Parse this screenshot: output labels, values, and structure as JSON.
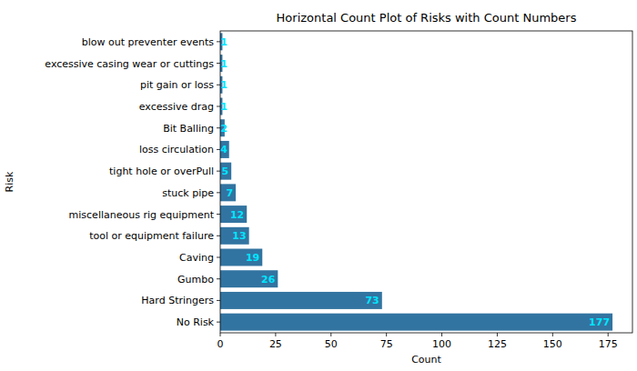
{
  "chart_data": {
    "type": "bar",
    "title": "Horizontal Count Plot of Risks with Count Numbers",
    "x_label": "Count",
    "y_label": "Risk",
    "categories": [
      "blow out preventer events",
      "excessive casing wear or cuttings",
      "pit gain or loss",
      "excessive drag",
      "Bit Balling",
      "loss circulation",
      "tight hole or overPull",
      "stuck pipe",
      "miscellaneous rig equipment",
      "tool or equipment failure",
      "Caving",
      "Gumbo",
      "Hard Stringers",
      "No Risk"
    ],
    "values": [
      1,
      1,
      1,
      1,
      2,
      4,
      5,
      7,
      12,
      13,
      19,
      26,
      73,
      177
    ],
    "color": "#3274a1",
    "orientation": "horizontal",
    "data_labels": true,
    "grid": false,
    "xlim": [
      0,
      186
    ],
    "xticks": [
      0,
      25,
      50,
      75,
      100,
      125,
      150,
      175
    ]
  }
}
